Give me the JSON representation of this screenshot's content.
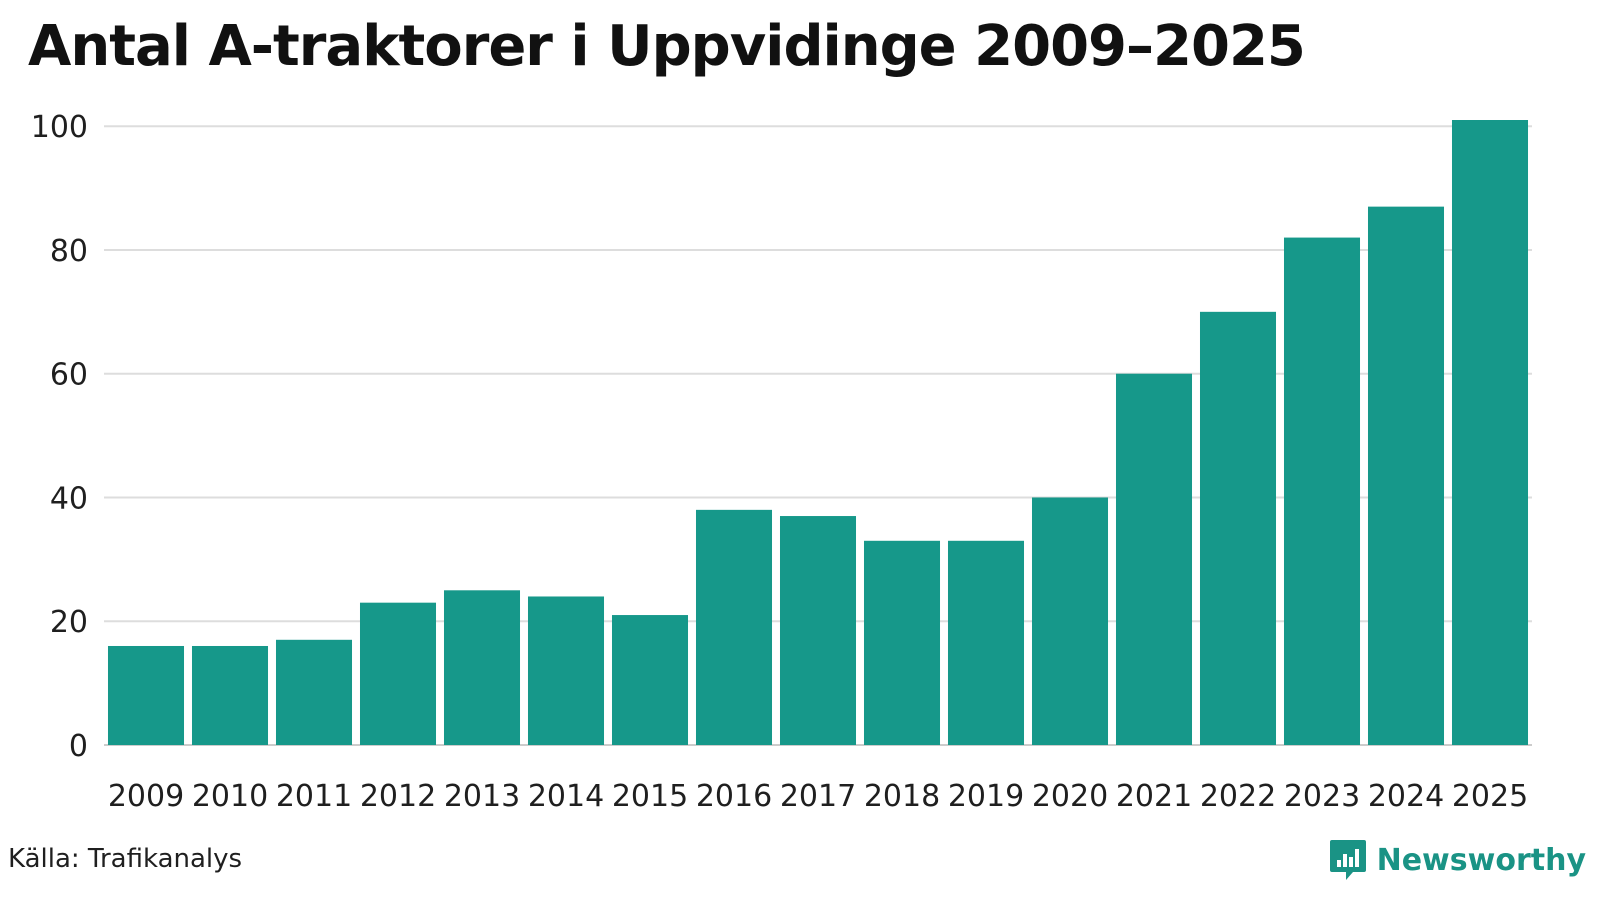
{
  "title": "Antal A-traktorer i Uppvidinge 2009–2025",
  "source": "Källa: Trafikanalys",
  "brand": {
    "name": "Newsworthy",
    "icon": "newsworthy-logo-icon"
  },
  "colors": {
    "bar": "#16988a",
    "grid": "#dddddd",
    "axis": "#cccccc",
    "brand": "#1a9385"
  },
  "chart_data": {
    "type": "bar",
    "title": "Antal A-traktorer i Uppvidinge 2009–2025",
    "xlabel": "",
    "ylabel": "",
    "categories": [
      "2009",
      "2010",
      "2011",
      "2012",
      "2013",
      "2014",
      "2015",
      "2016",
      "2017",
      "2018",
      "2019",
      "2020",
      "2021",
      "2022",
      "2023",
      "2024",
      "2025"
    ],
    "values": [
      16,
      16,
      17,
      23,
      25,
      24,
      21,
      38,
      37,
      33,
      33,
      40,
      60,
      70,
      82,
      87,
      101
    ],
    "ylim": [
      0,
      101
    ],
    "yticks": [
      0,
      20,
      40,
      60,
      80,
      100
    ],
    "grid": true,
    "legend": "none"
  }
}
